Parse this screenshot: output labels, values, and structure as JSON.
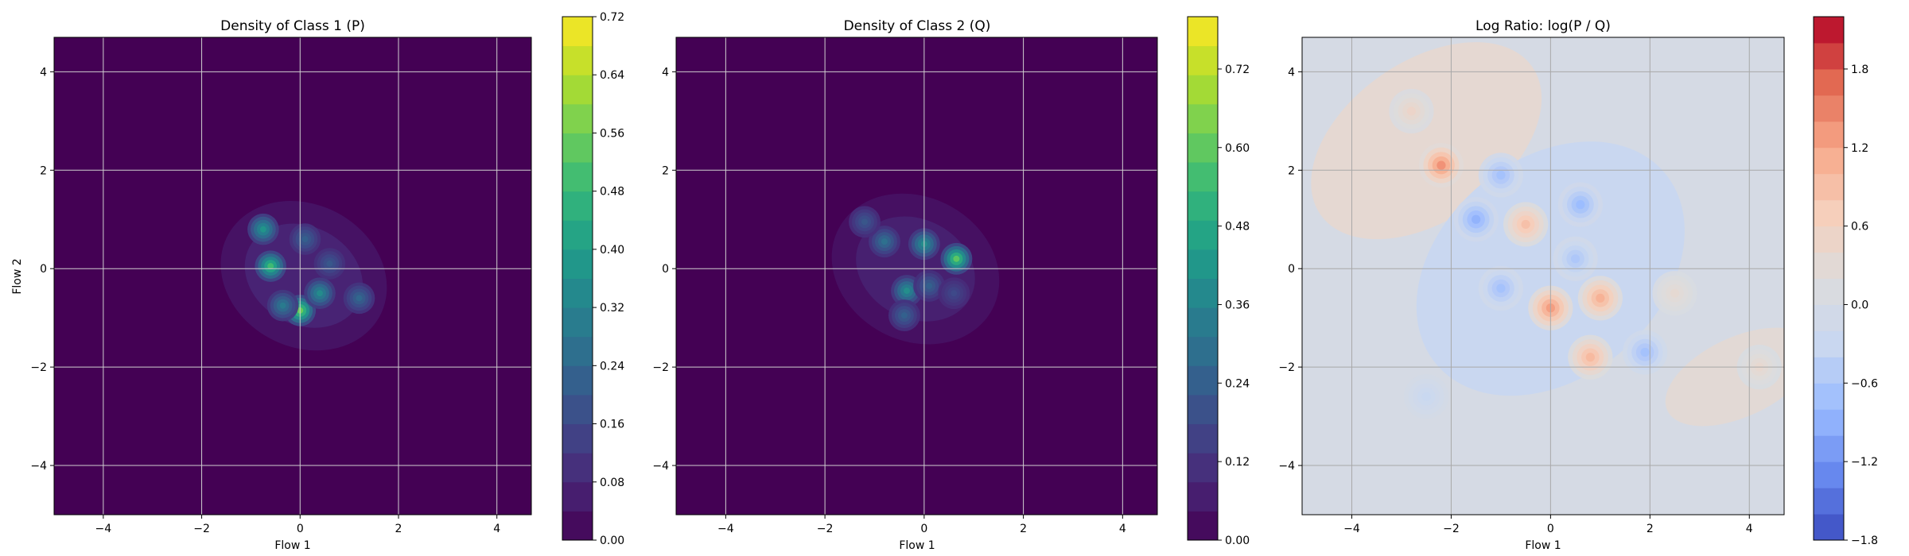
{
  "figure": {
    "panels": [
      {
        "title": "Density of Class 1 (P)",
        "xlabel": "Flow 1",
        "ylabel": "Flow 2",
        "colormap": "viridis",
        "colorbar_max_label": "0.72"
      },
      {
        "title": "Density of Class 2 (Q)",
        "xlabel": "Flow 1",
        "ylabel": "",
        "colormap": "viridis",
        "colorbar_max_label": ""
      },
      {
        "title": "Log Ratio: log(P / Q)",
        "xlabel": "Flow 1",
        "ylabel": "",
        "colormap": "coolwarm",
        "colorbar_max_label": ""
      }
    ]
  },
  "chart_data": [
    {
      "type": "heatmap",
      "title": "Density of Class 1 (P)",
      "xlabel": "Flow 1",
      "ylabel": "Flow 2",
      "xlim": [
        -5,
        4.7
      ],
      "ylim": [
        -5,
        4.7
      ],
      "xticks": [
        "−4",
        "−2",
        "0",
        "2",
        "4"
      ],
      "yticks": [
        "−4",
        "−2",
        "0",
        "2",
        "4"
      ],
      "grid": true,
      "colorbar": {
        "range": [
          0,
          0.72
        ],
        "ticks": [
          "0.00",
          "0.08",
          "0.16",
          "0.24",
          "0.32",
          "0.40",
          "0.48",
          "0.56",
          "0.64",
          "0.72"
        ]
      },
      "blobs": [
        {
          "x": -0.6,
          "y": 0.05,
          "value": 0.5
        },
        {
          "x": 0.0,
          "y": -0.85,
          "value": 0.56
        },
        {
          "x": -0.75,
          "y": 0.8,
          "value": 0.38
        },
        {
          "x": 0.4,
          "y": -0.5,
          "value": 0.35
        },
        {
          "x": -0.35,
          "y": -0.75,
          "value": 0.3
        },
        {
          "x": 1.2,
          "y": -0.6,
          "value": 0.24
        },
        {
          "x": 0.1,
          "y": 0.6,
          "value": 0.22
        },
        {
          "x": 0.6,
          "y": 0.1,
          "value": 0.2
        }
      ]
    },
    {
      "type": "heatmap",
      "title": "Density of Class 2 (Q)",
      "xlabel": "Flow 1",
      "ylabel": "",
      "xlim": [
        -5,
        4.7
      ],
      "ylim": [
        -5,
        4.7
      ],
      "xticks": [
        "−4",
        "−2",
        "0",
        "2",
        "4"
      ],
      "yticks": [
        "−4",
        "−2",
        "0",
        "2",
        "4"
      ],
      "grid": true,
      "colorbar": {
        "range": [
          0,
          0.8
        ],
        "ticks": [
          "0.00",
          "0.12",
          "0.24",
          "0.36",
          "0.48",
          "0.60",
          "0.72"
        ]
      },
      "blobs": [
        {
          "x": 0.65,
          "y": 0.2,
          "value": 0.6
        },
        {
          "x": 0.0,
          "y": 0.5,
          "value": 0.4
        },
        {
          "x": -0.35,
          "y": -0.45,
          "value": 0.4
        },
        {
          "x": -0.8,
          "y": 0.55,
          "value": 0.3
        },
        {
          "x": -1.2,
          "y": 0.95,
          "value": 0.22
        },
        {
          "x": 0.1,
          "y": -0.35,
          "value": 0.25
        },
        {
          "x": -0.4,
          "y": -0.95,
          "value": 0.25
        },
        {
          "x": 0.6,
          "y": -0.5,
          "value": 0.18
        }
      ]
    },
    {
      "type": "heatmap",
      "title": "Log Ratio: log(P / Q)",
      "xlabel": "Flow 1",
      "ylabel": "",
      "xlim": [
        -5,
        4.7
      ],
      "ylim": [
        -5,
        4.7
      ],
      "xticks": [
        "−4",
        "−2",
        "0",
        "2",
        "4"
      ],
      "yticks": [
        "−4",
        "−2",
        "0",
        "2",
        "4"
      ],
      "grid": true,
      "colorbar": {
        "range": [
          -1.8,
          2.2
        ],
        "ticks": [
          "−1.8",
          "−1.2",
          "−0.6",
          "0.0",
          "0.6",
          "1.2",
          "1.8"
        ]
      },
      "blobs": [
        {
          "x": -2.2,
          "y": 2.1,
          "value": 1.4
        },
        {
          "x": -2.8,
          "y": 3.2,
          "value": 0.5
        },
        {
          "x": 0.0,
          "y": -0.8,
          "value": 1.3
        },
        {
          "x": 1.0,
          "y": -0.6,
          "value": 1.1
        },
        {
          "x": 0.8,
          "y": -1.8,
          "value": 1.0
        },
        {
          "x": -0.5,
          "y": 0.9,
          "value": 0.9
        },
        {
          "x": -1.5,
          "y": 1.0,
          "value": -0.9
        },
        {
          "x": -1.0,
          "y": 1.9,
          "value": -0.7
        },
        {
          "x": 0.6,
          "y": 1.3,
          "value": -0.8
        },
        {
          "x": 1.9,
          "y": -1.7,
          "value": -0.7
        },
        {
          "x": -1.0,
          "y": -0.4,
          "value": -0.7
        },
        {
          "x": 0.5,
          "y": 0.2,
          "value": -0.6
        },
        {
          "x": 2.5,
          "y": -0.5,
          "value": 0.35
        },
        {
          "x": 4.2,
          "y": -2.0,
          "value": 0.4
        },
        {
          "x": -2.5,
          "y": -2.6,
          "value": -0.3
        }
      ]
    }
  ]
}
